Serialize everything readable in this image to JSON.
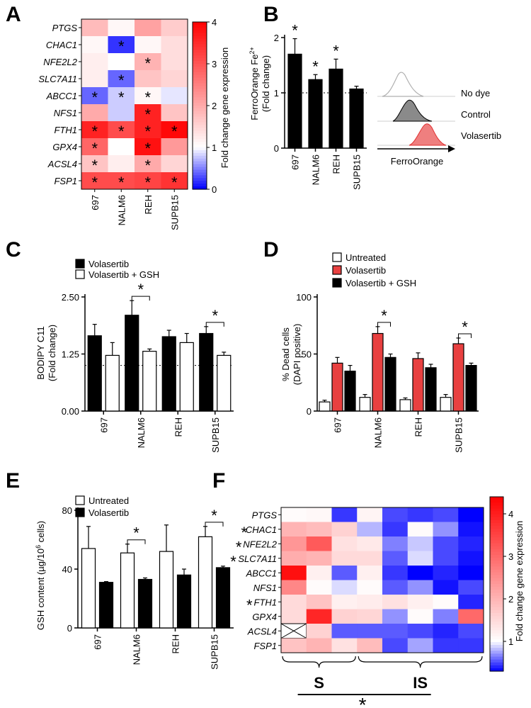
{
  "figure": {
    "panel_letters": [
      "A",
      "B",
      "C",
      "D",
      "E",
      "F"
    ]
  },
  "chart_data": [
    {
      "id": "A",
      "type": "heatmap",
      "rows": [
        "PTGS",
        "CHAC1",
        "NFE2L2",
        "SLC7A11",
        "ABCC1",
        "NFS1",
        "FTH1",
        "GPX4",
        "ACSL4",
        "FSP1"
      ],
      "columns": [
        "697",
        "NALM6",
        "REH",
        "SUPB15"
      ],
      "values": [
        [
          1.8,
          1.1,
          2.1,
          1.6
        ],
        [
          1.1,
          0.2,
          1.1,
          1.4
        ],
        [
          1.2,
          1.0,
          1.9,
          1.4
        ],
        [
          1.2,
          0.4,
          1.7,
          1.5
        ],
        [
          0.4,
          0.8,
          1.1,
          0.9
        ],
        [
          2.0,
          0.8,
          3.6,
          1.7
        ],
        [
          3.6,
          3.1,
          3.6,
          3.9
        ],
        [
          2.8,
          1.0,
          3.8,
          2.2
        ],
        [
          1.7,
          1.2,
          2.0,
          1.5
        ],
        [
          3.1,
          3.1,
          3.2,
          3.4
        ]
      ],
      "significant": [
        [
          false,
          false,
          false,
          false
        ],
        [
          false,
          true,
          false,
          false
        ],
        [
          false,
          false,
          true,
          false
        ],
        [
          false,
          true,
          false,
          false
        ],
        [
          true,
          true,
          true,
          false
        ],
        [
          false,
          false,
          true,
          false
        ],
        [
          true,
          true,
          true,
          true
        ],
        [
          true,
          false,
          true,
          false
        ],
        [
          true,
          false,
          true,
          false
        ],
        [
          true,
          true,
          true,
          true
        ]
      ],
      "significance_marker": "*",
      "colorbar": {
        "label": "Fold change gene expression",
        "min": 0,
        "mid": 1,
        "max": 4,
        "ticks": [
          "0",
          "1",
          "2",
          "3",
          "4"
        ],
        "low_color": "#0000ff",
        "mid_color": "#ffffff",
        "high_color": "#ff0000"
      }
    },
    {
      "id": "B",
      "type": "bar",
      "categories": [
        "697",
        "NALM6",
        "REH",
        "SUPB15"
      ],
      "values": [
        1.7,
        1.24,
        1.43,
        1.07
      ],
      "errors": [
        0.28,
        0.09,
        0.18,
        0.05
      ],
      "significant": [
        true,
        true,
        true,
        false
      ],
      "ylabel": "FerroOrange Fe2+ (Fold change)",
      "ylabel_line1": "FerroOrange Fe",
      "ylabel_sup": "2+",
      "ylabel_line2": "(Fold change)",
      "ylim": [
        0,
        2
      ],
      "yticks": [
        "0",
        "1",
        "2"
      ],
      "reference_line": 1,
      "bar_color": "#000000",
      "histogram": {
        "xlabel": "FerroOrange",
        "traces": [
          {
            "name": "No dye",
            "fill": "none",
            "stroke": "#b0b0b0"
          },
          {
            "name": "Control",
            "fill": "#8a8a8a",
            "stroke": "#000000"
          },
          {
            "name": "Volasertib",
            "fill": "#ef7f7f",
            "stroke": "#e03030"
          }
        ]
      }
    },
    {
      "id": "C",
      "type": "bar",
      "categories": [
        "697",
        "NALM6",
        "REH",
        "SUPB15"
      ],
      "series": [
        {
          "name": "Volasertib",
          "values": [
            1.65,
            2.1,
            1.63,
            1.7
          ],
          "errors": [
            0.25,
            0.32,
            0.14,
            0.15
          ],
          "color": "#000000"
        },
        {
          "name": "Volasertib + GSH",
          "values": [
            1.22,
            1.31,
            1.5,
            1.22
          ],
          "errors": [
            0.28,
            0.05,
            0.2,
            0.07
          ],
          "color": "#ffffff"
        }
      ],
      "significant_groups": [
        "NALM6",
        "SUPB15"
      ],
      "significance_marker": "*",
      "ylabel": "BODIPY C11 (Fold change)",
      "ylabel_line1": "BODIPY C11",
      "ylabel_line2": "(Fold change)",
      "ylim": [
        0,
        2.5
      ],
      "yticks": [
        "0.00",
        "1.25",
        "2.50"
      ],
      "reference_line": 1
    },
    {
      "id": "D",
      "type": "bar",
      "categories": [
        "697",
        "NALM6",
        "REH",
        "SUPB15"
      ],
      "series": [
        {
          "name": "Untreated",
          "values": [
            8,
            12,
            10,
            12
          ],
          "errors": [
            1.5,
            2.5,
            1.5,
            2.5
          ],
          "color": "#ffffff"
        },
        {
          "name": "Volasertib",
          "values": [
            42,
            68,
            46,
            59
          ],
          "errors": [
            5,
            6,
            5,
            5
          ],
          "color": "#e84040"
        },
        {
          "name": "Volasertib + GSH",
          "values": [
            35,
            47,
            38,
            40
          ],
          "errors": [
            5,
            3,
            3,
            2
          ],
          "color": "#000000"
        }
      ],
      "significant_groups": [
        "NALM6",
        "SUPB15"
      ],
      "significance_marker": "*",
      "ylabel": "% Dead cells (DAPI positive)",
      "ylabel_line1": "% Dead cells",
      "ylabel_line2": "(DAPI positive)",
      "ylim": [
        0,
        100
      ],
      "yticks": [
        "0",
        "50",
        "100"
      ]
    },
    {
      "id": "E",
      "type": "bar",
      "categories": [
        "697",
        "NALM6",
        "REH",
        "SUPB15"
      ],
      "series": [
        {
          "name": "Untreated",
          "values": [
            54,
            51,
            52,
            62
          ],
          "errors": [
            15,
            6,
            18,
            7
          ],
          "color": "#ffffff"
        },
        {
          "name": "Volasertib",
          "values": [
            31,
            33,
            36,
            41
          ],
          "errors": [
            0.5,
            1,
            4,
            1
          ],
          "color": "#000000"
        }
      ],
      "significant_groups": [
        "NALM6",
        "SUPB15"
      ],
      "significance_marker": "*",
      "ylabel": "GSH content (µg/10^6 cells)",
      "ylabel_main": "GSH content (µg/10",
      "ylabel_sup": "6",
      "ylabel_end": " cells)",
      "ylim": [
        0,
        80
      ],
      "yticks": [
        "0",
        "40",
        "80"
      ]
    },
    {
      "id": "F",
      "type": "heatmap",
      "rows": [
        "PTGS",
        "CHAC1",
        "NFE2L2",
        "SLC7A11",
        "ABCC1",
        "NFS1",
        "FTH1",
        "GPX4",
        "ACSL4",
        "FSP1"
      ],
      "row_marked": [
        false,
        true,
        true,
        true,
        false,
        false,
        true,
        false,
        false,
        false
      ],
      "values": [
        [
          1.05,
          1.1,
          0.45,
          1.15,
          0.5,
          0.45,
          0.5,
          0.1
        ],
        [
          2.0,
          1.9,
          1.6,
          0.8,
          0.45,
          1.05,
          0.7,
          0.35
        ],
        [
          2.4,
          3.2,
          1.4,
          1.3,
          0.65,
          0.85,
          0.5,
          0.4
        ],
        [
          2.1,
          2.0,
          1.5,
          1.5,
          0.55,
          0.9,
          0.5,
          0.35
        ],
        [
          4.2,
          1.2,
          0.55,
          1.2,
          0.45,
          0.3,
          0.4,
          0.2
        ],
        [
          2.6,
          1.05,
          0.9,
          1.05,
          0.55,
          0.7,
          0.35,
          0.5
        ],
        [
          1.5,
          1.8,
          1.2,
          1.25,
          1.4,
          1.2,
          1.05,
          0.4
        ],
        [
          1.5,
          3.9,
          1.6,
          1.55,
          0.7,
          1.05,
          0.65,
          3.0
        ],
        [
          null,
          1.6,
          0.55,
          0.55,
          0.55,
          0.5,
          0.4,
          0.5
        ],
        [
          1.8,
          2.0,
          1.4,
          1.9,
          0.5,
          0.75,
          0.45,
          0.45
        ]
      ],
      "colorbar": {
        "label": "Fold change gene expression",
        "min": 0.3,
        "mid": 1,
        "max": 4.4,
        "ticks": [
          "1",
          "2",
          "3",
          "4"
        ],
        "low_color": "#0000ff",
        "mid_color": "#ffffff",
        "high_color": "#ff0000"
      },
      "groups": [
        {
          "label": "S",
          "columns": [
            0,
            1,
            2
          ]
        },
        {
          "label": "IS",
          "columns": [
            3,
            4,
            5,
            6,
            7
          ]
        }
      ],
      "group_comparison_marker": "*"
    }
  ]
}
